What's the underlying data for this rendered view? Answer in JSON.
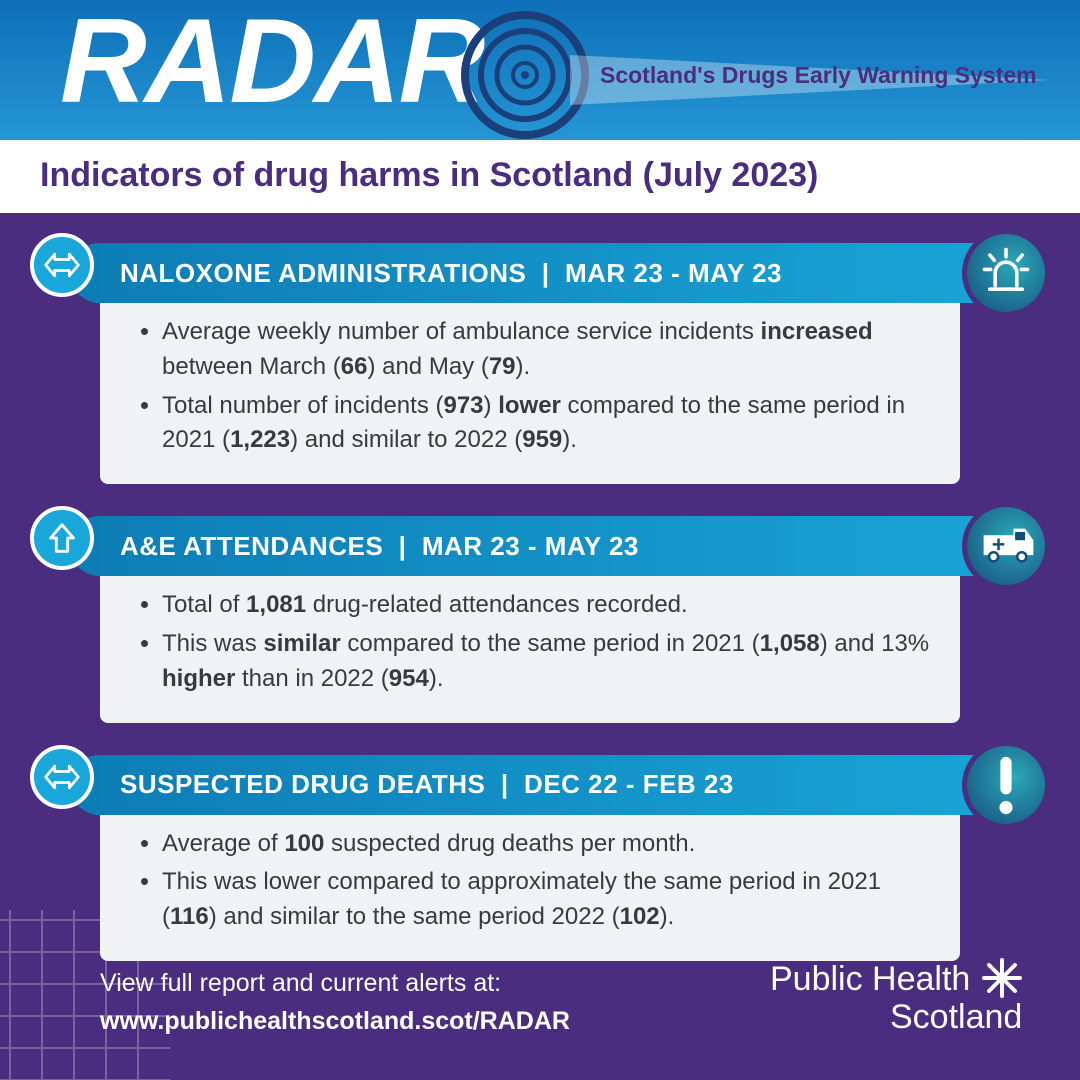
{
  "colors": {
    "bg": "#4a2d7f",
    "header_grad_top": "#0d6fb8",
    "header_grad_bot": "#2596d4",
    "card_header_l": "#0d7cb5",
    "card_header_r": "#19a6d8",
    "card_body_bg": "#f0f2f4",
    "text": "#3a3a3a",
    "white": "#ffffff"
  },
  "header": {
    "title": "RADAR",
    "subtitle": "Scotland's Drugs Early Warning System"
  },
  "page_title": "Indicators of drug harms in Scotland (July 2023)",
  "cards": [
    {
      "trend": "level",
      "icon": "siren",
      "heading": "NALOXONE ADMINISTRATIONS",
      "daterange": "MAR 23 - MAY 23",
      "bullets_html": [
        "Average weekly number of ambulance service incidents <b>increased</b> between March (<b>66</b>) and May (<b>79</b>).",
        "Total number of incidents (<b>973</b>) <b>lower</b> compared to the same period in 2021 (<b>1,223</b>) and similar to 2022 (<b>959</b>)."
      ]
    },
    {
      "trend": "up",
      "icon": "ambulance",
      "heading": "A&E ATTENDANCES",
      "daterange": "MAR 23 - MAY 23",
      "bullets_html": [
        "Total of <b>1,081</b> drug-related attendances recorded.",
        "This was <b>similar</b> compared to the same period in 2021 (<b>1,058</b>) and 13% <b>higher</b> than in 2022 (<b>954</b>)."
      ]
    },
    {
      "trend": "level",
      "icon": "exclaim",
      "heading": "SUSPECTED DRUG DEATHS",
      "daterange": "DEC 22 - FEB 23",
      "bullets_html": [
        "Average of <b>100</b> suspected drug deaths per month.",
        "This was lower compared to approximately the same period in 2021 (<b>116</b>) and similar to the same period 2022 (<b>102</b>)."
      ]
    }
  ],
  "footer": {
    "lead": "View full report and current alerts at:",
    "link": "www.publichealthscotland.scot/RADAR",
    "org_line1": "Public Health",
    "org_line2": "Scotland"
  }
}
